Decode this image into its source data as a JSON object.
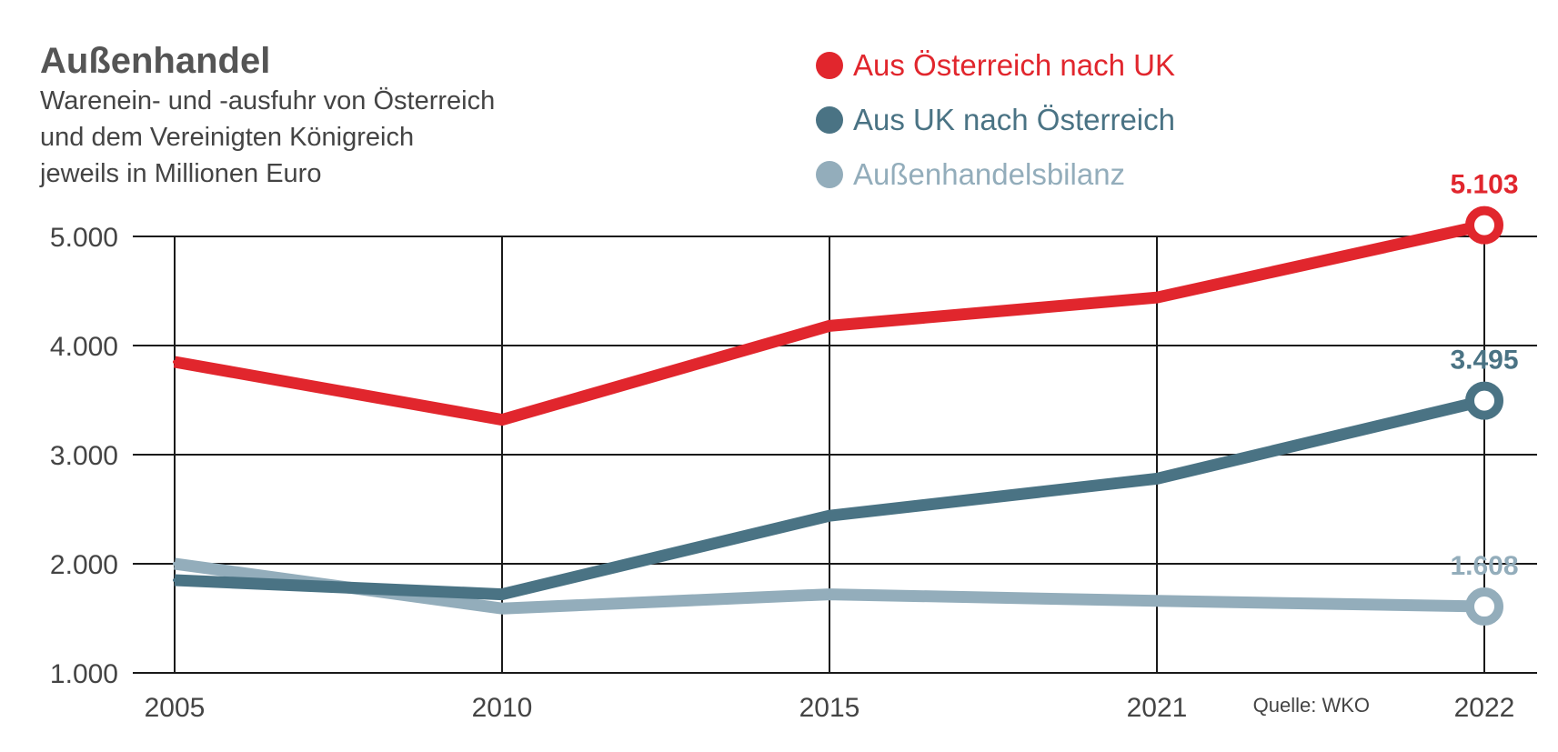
{
  "colors": {
    "red": "#e1262d",
    "dark": "#4a7384",
    "light": "#93adbb",
    "text": "#444444",
    "title": "#555555",
    "grid": "#1a1a1a"
  },
  "chart_data": {
    "type": "line",
    "title": "Außenhandel",
    "subtitle": [
      "Warenein- und -ausfuhr von Österreich",
      "und dem Vereinigten Königreich",
      "jeweils in Millionen Euro"
    ],
    "xlabel": "",
    "ylabel": "",
    "categories": [
      "2005",
      "2010",
      "2015",
      "2021",
      "2022"
    ],
    "ylim": [
      1000,
      5000
    ],
    "yticks": [
      5000,
      4000,
      3000,
      2000,
      1000
    ],
    "ytick_labels": [
      "5.000",
      "4.000",
      "3.000",
      "2.000",
      "1.000"
    ],
    "grid": true,
    "legend_position": "top-right",
    "source": "Quelle: WKO",
    "series": [
      {
        "name": "Aus Österreich nach UK",
        "key": "red",
        "color": "#e1262d",
        "values": [
          3850,
          3320,
          4180,
          4440,
          5103
        ],
        "end_label": "5.103"
      },
      {
        "name": "Aus UK nach Österreich",
        "key": "dark",
        "color": "#4a7384",
        "values": [
          1850,
          1720,
          2440,
          2780,
          3495
        ],
        "end_label": "3.495"
      },
      {
        "name": "Außenhandelsbilanz",
        "key": "light",
        "color": "#93adbb",
        "values": [
          2000,
          1590,
          1720,
          1660,
          1608
        ],
        "end_label": "1.608"
      }
    ]
  }
}
